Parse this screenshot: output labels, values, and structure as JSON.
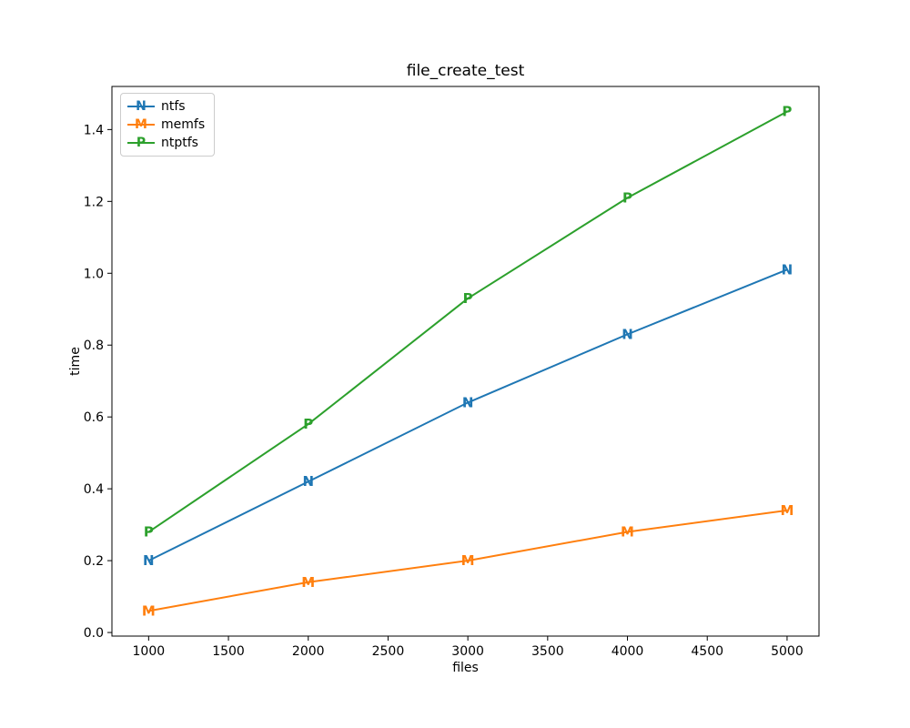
{
  "figure": {
    "title": "file_create_test",
    "xlabel": "files",
    "ylabel": "time"
  },
  "chart_data": {
    "type": "line",
    "title": "file_create_test",
    "xlabel": "files",
    "ylabel": "time",
    "x": [
      1000,
      2000,
      3000,
      4000,
      5000
    ],
    "series": [
      {
        "name": "ntfs",
        "marker": "N",
        "color": "#1f77b4",
        "values": [
          0.2,
          0.42,
          0.64,
          0.83,
          1.01
        ]
      },
      {
        "name": "memfs",
        "marker": "M",
        "color": "#ff7f0e",
        "values": [
          0.06,
          0.14,
          0.2,
          0.28,
          0.34
        ]
      },
      {
        "name": "ntptfs",
        "marker": "P",
        "color": "#2ca02c",
        "values": [
          0.28,
          0.58,
          0.93,
          1.21,
          1.45
        ]
      }
    ],
    "xticks": [
      1000,
      1500,
      2000,
      2500,
      3000,
      3500,
      4000,
      4500,
      5000
    ],
    "yticks": [
      0.0,
      0.2,
      0.4,
      0.6,
      0.8,
      1.0,
      1.2,
      1.4
    ],
    "xlim": [
      770,
      5200
    ],
    "ylim": [
      -0.01,
      1.52
    ],
    "grid": false,
    "legend_position": "upper left",
    "axis_color": "#000000"
  }
}
